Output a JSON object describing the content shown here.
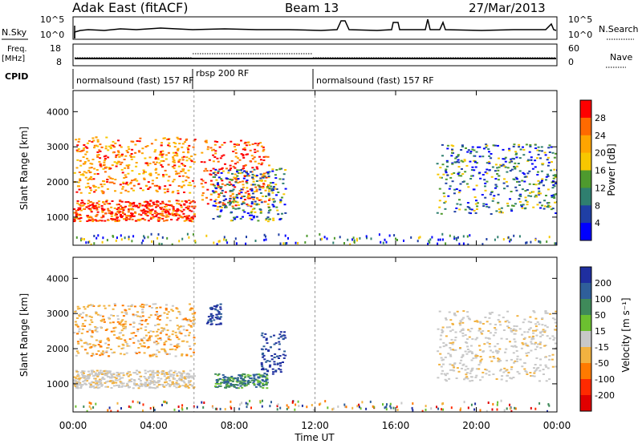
{
  "header": {
    "station": "Adak East (fitACF)",
    "beam": "Beam 13",
    "date": "27/Mar/2013"
  },
  "panels": {
    "nsky": {
      "label": "N.Sky",
      "left_ticks": [
        "10^5",
        "10^0"
      ],
      "right_ticks": [
        "10^5",
        "10^0"
      ],
      "right_label": "N.Search"
    },
    "freq": {
      "label": "Freq.",
      "unit": "[MHz]",
      "left_ticks": [
        "18",
        "8"
      ],
      "right_ticks": [
        "60",
        "0"
      ],
      "right_label": "Nave"
    },
    "cpid": {
      "label": "CPID",
      "segments": [
        "normalsound (fast) 157 RF",
        "rbsp 200 RF",
        "normalsound (fast) 157 RF"
      ]
    }
  },
  "chart_data": [
    {
      "type": "heatmap",
      "name": "power",
      "ylabel": "Slant Range [km]",
      "yticks": [
        "1000",
        "2000",
        "3000",
        "4000"
      ],
      "ylim": [
        200,
        4600
      ],
      "xlim": [
        "00:00",
        "24:00"
      ],
      "colorbar": {
        "label": "Power [dB]",
        "ticks": [
          "28",
          "24",
          "20",
          "16",
          "12",
          "8",
          "4"
        ],
        "colors": [
          "#ff0000",
          "#ff6a00",
          "#ffa500",
          "#f7c700",
          "#4e9a2e",
          "#2f7f6f",
          "#1f3fa5",
          "#0000ff"
        ]
      },
      "regions": [
        {
          "t": [
            0,
            6.0
          ],
          "r": [
            900,
            1500
          ],
          "level": "strong"
        },
        {
          "t": [
            0,
            6.0
          ],
          "r": [
            1700,
            3300
          ],
          "level": "medium"
        },
        {
          "t": [
            6.3,
            9.7
          ],
          "r": [
            1300,
            3200
          ],
          "level": "strong"
        },
        {
          "t": [
            6.8,
            10.5
          ],
          "r": [
            900,
            2400
          ],
          "level": "weak"
        },
        {
          "t": [
            18.0,
            24.0
          ],
          "r": [
            1100,
            3100
          ],
          "level": "weak"
        }
      ]
    },
    {
      "type": "heatmap",
      "name": "velocity",
      "ylabel": "Slant Range [km]",
      "yticks": [
        "1000",
        "2000",
        "3000",
        "4000"
      ],
      "ylim": [
        200,
        4600
      ],
      "xlim": [
        "00:00",
        "24:00"
      ],
      "xticks": [
        "00:00",
        "04:00",
        "08:00",
        "12:00",
        "16:00",
        "20:00",
        "00:00"
      ],
      "xlabel": "Time UT",
      "colorbar": {
        "label": "Velocity [m s⁻¹]",
        "ticks": [
          "200",
          "100",
          "50",
          "15",
          "-15",
          "-50",
          "-100",
          "-200"
        ],
        "colors": [
          "#1f2fa0",
          "#2f5f9a",
          "#3f8a5a",
          "#6cc030",
          "#c8c8c8",
          "#f2b240",
          "#ff7a00",
          "#ff2a00",
          "#e00000"
        ]
      },
      "regions": [
        {
          "t": [
            0,
            6.0
          ],
          "r": [
            900,
            1400
          ],
          "level": "grey"
        },
        {
          "t": [
            0,
            6.0
          ],
          "r": [
            1800,
            3300
          ],
          "level": "orange"
        },
        {
          "t": [
            6.6,
            7.3
          ],
          "r": [
            2700,
            3300
          ],
          "level": "blue"
        },
        {
          "t": [
            7.0,
            9.6
          ],
          "r": [
            900,
            1300
          ],
          "level": "green"
        },
        {
          "t": [
            9.3,
            10.5
          ],
          "r": [
            1300,
            2500
          ],
          "level": "blue"
        },
        {
          "t": [
            18.0,
            24.0
          ],
          "r": [
            1100,
            3100
          ],
          "level": "grey"
        }
      ]
    }
  ]
}
